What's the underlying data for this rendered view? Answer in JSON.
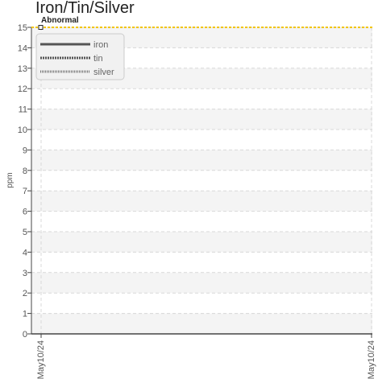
{
  "chart_data": {
    "type": "line",
    "title": "Iron/Tin/Silver",
    "xlabel": "",
    "ylabel": "ppm",
    "x_ticks": [
      "May10/24",
      "May10/24"
    ],
    "y_ticks": [
      0,
      1,
      2,
      3,
      4,
      5,
      6,
      7,
      8,
      9,
      10,
      11,
      12,
      13,
      14,
      15
    ],
    "ylim": [
      0,
      15
    ],
    "grid": true,
    "legend_position": "top-left",
    "series": [
      {
        "name": "iron",
        "values": [],
        "line_style": "solid",
        "color": "#555555"
      },
      {
        "name": "tin",
        "values": [],
        "line_style": "dense-dash",
        "color": "#555555"
      },
      {
        "name": "silver",
        "values": [],
        "line_style": "dotted",
        "color": "#777777"
      }
    ],
    "threshold": {
      "label": "Abnormal",
      "value": 15,
      "color": "#f2c500"
    }
  }
}
